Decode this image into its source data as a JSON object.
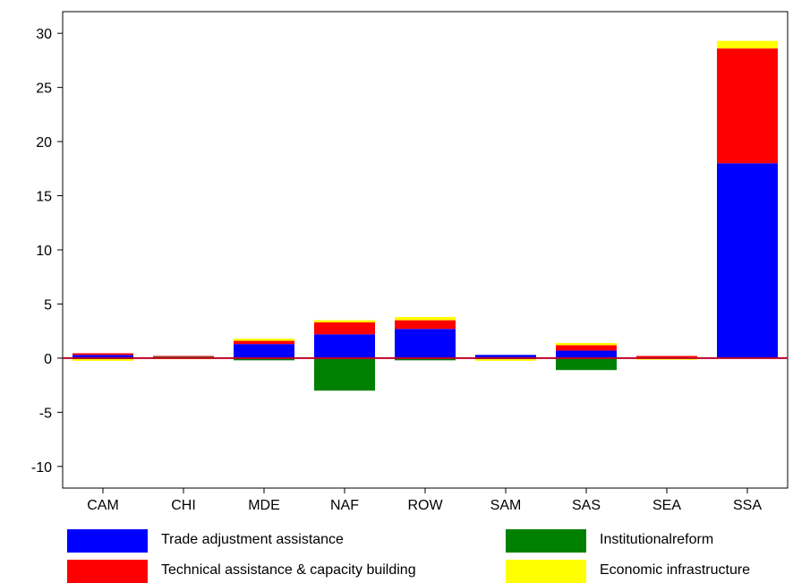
{
  "chart_data": {
    "type": "bar",
    "stacked": true,
    "categories": [
      "CAM",
      "CHI",
      "MDE",
      "NAF",
      "ROW",
      "SAM",
      "SAS",
      "SEA",
      "SSA"
    ],
    "series": [
      {
        "name": "Trade adjustment assistance",
        "color": "#0000ff",
        "values": [
          0.3,
          0.1,
          1.3,
          2.2,
          2.7,
          0.3,
          0.7,
          0.05,
          18.0
        ]
      },
      {
        "name": "Institutionalreform",
        "color": "#008000",
        "values": [
          -0.1,
          0.05,
          -0.2,
          -3.0,
          -0.2,
          -0.1,
          -1.1,
          -0.05,
          0.0
        ]
      },
      {
        "name": "Technical assistance & capacity building",
        "color": "#ff0000",
        "values": [
          0.15,
          0.05,
          0.3,
          1.1,
          0.8,
          0.0,
          0.5,
          0.15,
          10.6
        ]
      },
      {
        "name": "Economic infrastructure",
        "color": "#ffff00",
        "values": [
          -0.15,
          -0.1,
          0.2,
          0.2,
          0.3,
          -0.15,
          0.2,
          -0.1,
          0.7
        ]
      }
    ],
    "ylim": [
      -12,
      32
    ],
    "yticks": [
      "30",
      "25",
      "20",
      "15",
      "10",
      "5",
      "0",
      "-5",
      "-10"
    ],
    "zero_line_color": "#c0002a",
    "legend_position": "bottom",
    "title": "",
    "xlabel": "",
    "ylabel": ""
  }
}
